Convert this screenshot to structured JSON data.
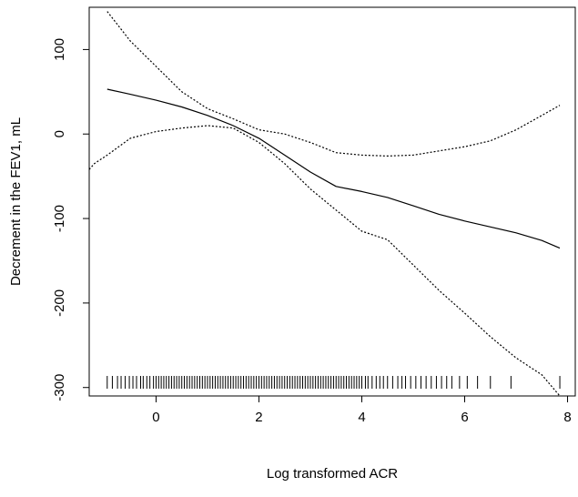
{
  "chart_data": {
    "type": "line",
    "title": "",
    "xlabel": "Log transformed ACR",
    "ylabel": "Decrement in the FEV1, mL",
    "xlim": [
      -1.3,
      8.15
    ],
    "ylim": [
      -310,
      150
    ],
    "x_ticks": [
      "0",
      "2",
      "4",
      "6",
      "8"
    ],
    "y_ticks": [
      "100",
      "0",
      "-100",
      "-200",
      "-300"
    ],
    "x_tick_values": [
      0,
      2,
      4,
      6,
      8
    ],
    "y_tick_values": [
      100,
      0,
      -100,
      -200,
      -300
    ],
    "grid": false,
    "series": [
      {
        "style": "solid",
        "x": [
          -0.95,
          -0.5,
          0,
          0.5,
          1,
          1.5,
          2,
          2.5,
          3,
          3.5,
          4,
          4.5,
          5,
          5.5,
          6,
          6.5,
          7,
          7.5,
          7.85
        ],
        "y": [
          53,
          47,
          40,
          32,
          22,
          10,
          -5,
          -25,
          -45,
          -62,
          -68,
          -75,
          -85,
          -95,
          -103,
          -110,
          -117,
          -126,
          -135
        ]
      },
      {
        "style": "dotted",
        "x": [
          -1.3,
          -1.2,
          -0.95,
          -0.5,
          0,
          0.5,
          1,
          1.5,
          2,
          2.5,
          3,
          3.5,
          4,
          4.5,
          5,
          5.5,
          6,
          6.5,
          7,
          7.5,
          7.85
        ],
        "y": [
          -42,
          -35,
          -25,
          -5,
          3,
          7,
          10,
          7,
          -10,
          -35,
          -65,
          -90,
          -115,
          -125,
          -155,
          -185,
          -212,
          -240,
          -265,
          -285,
          -310
        ]
      },
      {
        "style": "dotted",
        "x": [
          -0.95,
          -0.5,
          0,
          0.5,
          1,
          1.5,
          2,
          2.5,
          3,
          3.5,
          4,
          4.5,
          5,
          5.5,
          6,
          6.5,
          7,
          7.5,
          7.85
        ],
        "y": [
          145,
          110,
          80,
          50,
          30,
          18,
          5,
          0,
          -10,
          -22,
          -25,
          -26,
          -25,
          -20,
          -15,
          -8,
          5,
          22,
          34
        ]
      }
    ],
    "rug": [
      -0.95,
      -0.85,
      -0.75,
      -0.68,
      -0.6,
      -0.52,
      -0.45,
      -0.38,
      -0.3,
      -0.25,
      -0.18,
      -0.12,
      -0.05,
      0,
      0.05,
      0.1,
      0.15,
      0.2,
      0.25,
      0.3,
      0.35,
      0.4,
      0.45,
      0.5,
      0.55,
      0.6,
      0.65,
      0.7,
      0.75,
      0.8,
      0.85,
      0.9,
      0.95,
      1,
      1.05,
      1.1,
      1.15,
      1.2,
      1.25,
      1.3,
      1.35,
      1.4,
      1.45,
      1.5,
      1.55,
      1.6,
      1.65,
      1.7,
      1.75,
      1.8,
      1.85,
      1.9,
      1.95,
      2,
      2.05,
      2.1,
      2.15,
      2.2,
      2.25,
      2.3,
      2.35,
      2.4,
      2.45,
      2.5,
      2.55,
      2.6,
      2.65,
      2.7,
      2.75,
      2.8,
      2.85,
      2.9,
      2.95,
      3,
      3.05,
      3.1,
      3.15,
      3.2,
      3.25,
      3.3,
      3.35,
      3.4,
      3.45,
      3.5,
      3.55,
      3.6,
      3.65,
      3.7,
      3.75,
      3.8,
      3.85,
      3.9,
      3.95,
      4,
      4.07,
      4.12,
      4.2,
      4.28,
      4.35,
      4.42,
      4.5,
      4.6,
      4.7,
      4.78,
      4.85,
      4.95,
      5.05,
      5.15,
      5.25,
      5.35,
      5.45,
      5.55,
      5.65,
      5.75,
      5.9,
      6.05,
      6.25,
      6.5,
      6.9,
      7.85
    ]
  }
}
